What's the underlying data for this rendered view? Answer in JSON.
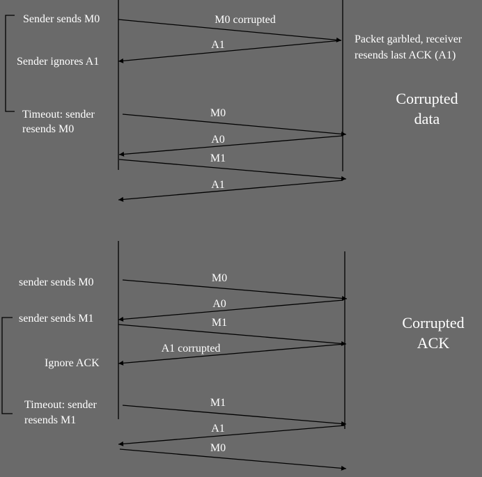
{
  "top": {
    "annotations": {
      "sender_sends_m0": "Sender sends M0",
      "sender_ignores_a1": "Sender ignores A1",
      "timeout_line1": "Timeout: sender",
      "timeout_line2": "resends M0",
      "receiver_note_line1": "Packet garbled, receiver",
      "receiver_note_line2": "resends last ACK  (A1)",
      "section_line1": "Corrupted",
      "section_line2": "data"
    },
    "messages": [
      "M0 corrupted",
      "A1",
      "M0",
      "A0",
      "M1",
      "A1"
    ]
  },
  "bottom": {
    "annotations": {
      "sender_sends_m0": "sender sends M0",
      "sender_sends_m1": "sender sends M1",
      "ignore_ack": "Ignore ACK",
      "timeout_line1": "Timeout: sender",
      "timeout_line2": "resends M1",
      "section_line1": "Corrupted",
      "section_line2": "ACK"
    },
    "messages": [
      "M0",
      "A0",
      "M1",
      "A1 corrupted",
      "M1",
      "A1",
      "M0"
    ]
  },
  "colors": {
    "background": "#6a6a6a",
    "ink": "#000000",
    "text": "#ffffff"
  }
}
